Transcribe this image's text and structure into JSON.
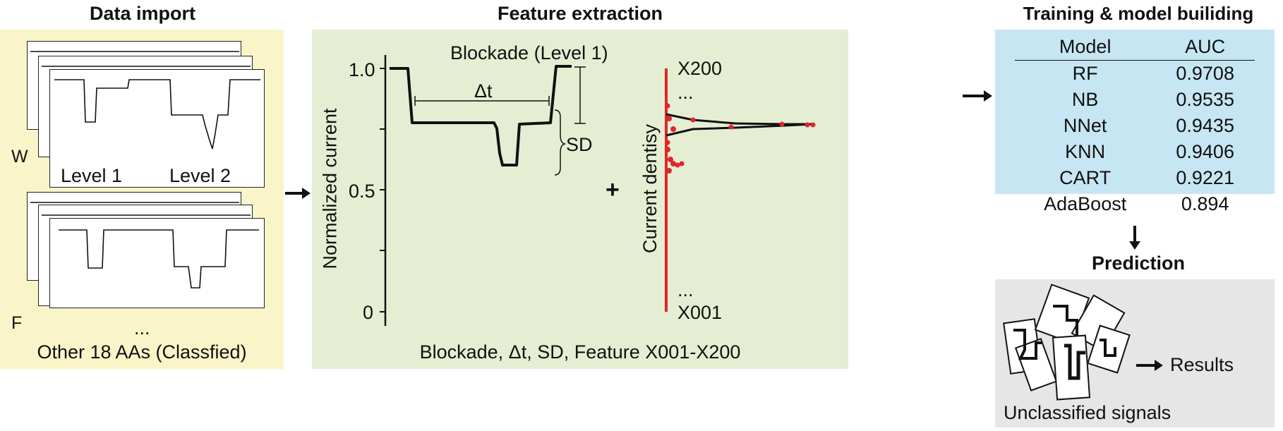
{
  "import_panel": {
    "heading": "Data import",
    "label_w": "W",
    "label_f": "F",
    "level1": "Level 1",
    "level2": "Level 2",
    "ellipsis": "...",
    "footer": "Other 18 AAs (Classfied)",
    "colors": {
      "bg": "#faf5c9"
    }
  },
  "feature_panel": {
    "heading": "Feature extraction",
    "plot_title": "Blockade (Level 1)",
    "ylabel": "Normalized current",
    "yticks": [
      "1.0",
      "0.5",
      "0"
    ],
    "delta_t": "Δt",
    "sd": "SD",
    "plus": "+",
    "density_label": "Current dentisy",
    "top_feature": "X200",
    "bottom_feature": "X001",
    "ellipsis": "...",
    "footer": "Blockade, Δt, SD, Feature X001-X200",
    "colors": {
      "bg": "#e5eed2",
      "density_points": "#e0262a",
      "density_axis": "#e0262a"
    }
  },
  "training_panel": {
    "heading": "Training & model builiding",
    "table": {
      "headers": [
        "Model",
        "AUC"
      ],
      "rows": [
        [
          "RF",
          "0.9708"
        ],
        [
          "NB",
          "0.9535"
        ],
        [
          "NNet",
          "0.9435"
        ],
        [
          "KNN",
          "0.9406"
        ],
        [
          "CART",
          "0.9221"
        ],
        [
          "AdaBoost",
          "0.894"
        ]
      ]
    },
    "colors": {
      "bg": "#c7e6f3"
    }
  },
  "prediction_panel": {
    "heading": "Prediction",
    "results": "Results",
    "caption": "Unclassified signals",
    "colors": {
      "bg": "#e6e6e6"
    }
  },
  "chart_data": {
    "type": "line",
    "title": "Blockade (Level 1)",
    "ylabel": "Normalized current",
    "xlabel": "",
    "yticks": [
      1.0,
      0.5,
      0
    ],
    "ylim": [
      0,
      1.0
    ]
  }
}
